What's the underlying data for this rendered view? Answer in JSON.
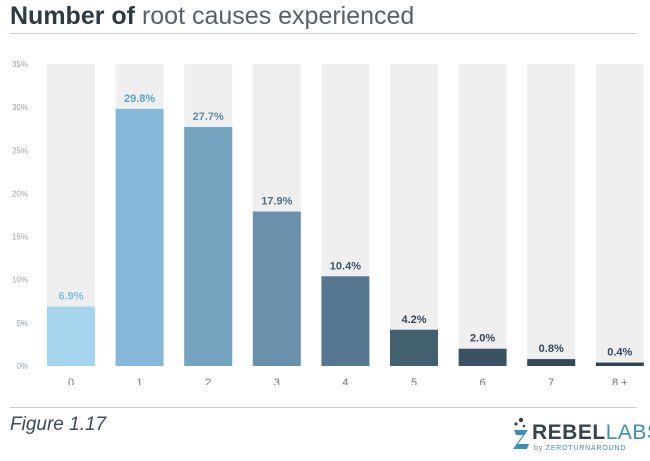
{
  "header": {
    "title_bold": "Number of",
    "title_rest": "root causes experienced"
  },
  "footer": {
    "figure_label": "Figure 1.17"
  },
  "logo": {
    "word_main": "REBEL",
    "word_accent": "LABS",
    "by": "by",
    "company": "ZEROTURNAROUND"
  },
  "chart_data": {
    "type": "bar",
    "categories": [
      "0",
      "1",
      "2",
      "3",
      "4",
      "5",
      "6",
      "7",
      "8 +"
    ],
    "values": [
      6.9,
      29.8,
      27.7,
      17.9,
      10.4,
      4.2,
      2.0,
      0.8,
      0.4
    ],
    "data_labels": [
      "6.9%",
      "29.8%",
      "27.7%",
      "17.9%",
      "10.4%",
      "4.2%",
      "2.0%",
      "0.8%",
      "0.4%"
    ],
    "y_ticks": [
      0,
      5,
      10,
      15,
      20,
      25,
      30,
      35
    ],
    "y_tick_labels": [
      "0%",
      "5%",
      "10%",
      "15%",
      "20%",
      "25%",
      "30%",
      "35%"
    ],
    "ylim": [
      0,
      35
    ],
    "grid": false,
    "title": "Number of root causes experienced",
    "bar_colors": [
      "#a5d5ec",
      "#86b9d9",
      "#74a3c0",
      "#6b90ac",
      "#557890",
      "#43606f",
      "#3a5362",
      "#33495a",
      "#2f4555"
    ],
    "label_colors": [
      "#7cc0e0",
      "#5fa3c8",
      "#5a8fad",
      "#4d6f88",
      "#3e5666",
      "#34495a",
      "#34495a",
      "#34495a",
      "#34495a"
    ],
    "track_color": "#efeff0"
  }
}
